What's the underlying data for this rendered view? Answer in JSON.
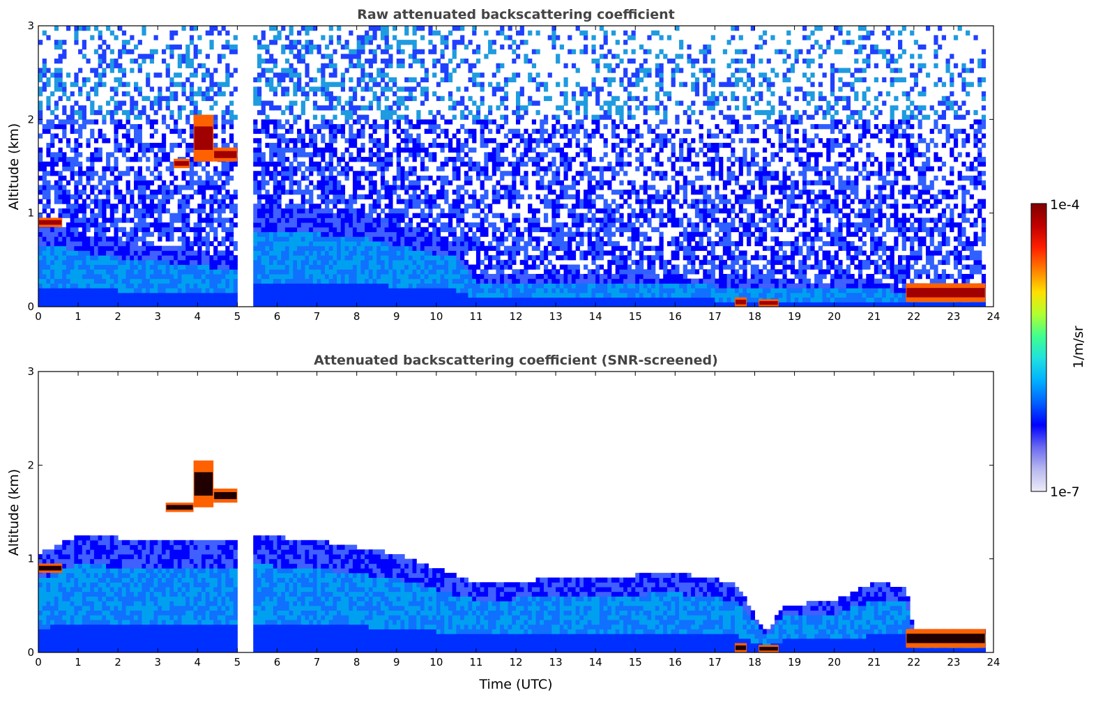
{
  "chart_data": [
    {
      "type": "heatmap",
      "title": "Raw attenuated backscattering coefficient",
      "xlabel": "",
      "ylabel": "Altitude (km)",
      "xlim": [
        0,
        24
      ],
      "ylim": [
        0,
        3
      ],
      "xticks": [
        "0",
        "1",
        "2",
        "3",
        "4",
        "5",
        "6",
        "7",
        "8",
        "9",
        "10",
        "11",
        "12",
        "13",
        "14",
        "15",
        "16",
        "17",
        "18",
        "19",
        "20",
        "21",
        "22",
        "23",
        "24"
      ],
      "yticks": [
        "0",
        "1",
        "2",
        "3"
      ],
      "data_gaps_utc": [
        [
          5.0,
          5.4
        ],
        [
          23.85,
          24.0
        ]
      ],
      "boundary_layer_top_km": [
        [
          0,
          0.9
        ],
        [
          2,
          0.7
        ],
        [
          4,
          0.6
        ],
        [
          5,
          0.5
        ],
        [
          5.4,
          1.1
        ],
        [
          8,
          1.0
        ],
        [
          10.5,
          0.7
        ],
        [
          11,
          0.35
        ],
        [
          14,
          0.35
        ],
        [
          17,
          0.3
        ],
        [
          19,
          0.25
        ],
        [
          21,
          0.3
        ],
        [
          22,
          0.15
        ],
        [
          24,
          0.15
        ]
      ],
      "cloud_layers": [
        {
          "time_utc": [
            0.0,
            0.6
          ],
          "altitude_km": [
            0.85,
            0.95
          ]
        },
        {
          "time_utc": [
            3.4,
            3.8
          ],
          "altitude_km": [
            1.48,
            1.58
          ]
        },
        {
          "time_utc": [
            3.9,
            4.4
          ],
          "altitude_km": [
            1.55,
            2.05
          ]
        },
        {
          "time_utc": [
            4.4,
            5.0
          ],
          "altitude_km": [
            1.55,
            1.7
          ]
        },
        {
          "time_utc": [
            17.5,
            17.8
          ],
          "altitude_km": [
            0.0,
            0.1
          ]
        },
        {
          "time_utc": [
            18.1,
            18.6
          ],
          "altitude_km": [
            0.0,
            0.08
          ]
        },
        {
          "time_utc": [
            21.8,
            23.8
          ],
          "altitude_km": [
            0.05,
            0.25
          ]
        }
      ]
    },
    {
      "type": "heatmap",
      "title": "Attenuated backscattering coefficient (SNR-screened)",
      "xlabel": "Time (UTC)",
      "ylabel": "Altitude (km)",
      "xlim": [
        0,
        24
      ],
      "ylim": [
        0,
        3
      ],
      "xticks": [
        "0",
        "1",
        "2",
        "3",
        "4",
        "5",
        "6",
        "7",
        "8",
        "9",
        "10",
        "11",
        "12",
        "13",
        "14",
        "15",
        "16",
        "17",
        "18",
        "19",
        "20",
        "21",
        "22",
        "23",
        "24"
      ],
      "yticks": [
        "0",
        "1",
        "2",
        "3"
      ],
      "data_gaps_utc": [
        [
          5.0,
          5.4
        ],
        [
          23.85,
          24.0
        ]
      ],
      "boundary_layer_top_km": [
        [
          0,
          1.05
        ],
        [
          1,
          1.25
        ],
        [
          3,
          1.2
        ],
        [
          5,
          1.2
        ],
        [
          5.4,
          1.25
        ],
        [
          7,
          1.2
        ],
        [
          9,
          1.05
        ],
        [
          10,
          0.9
        ],
        [
          11,
          0.75
        ],
        [
          14,
          0.8
        ],
        [
          16,
          0.85
        ],
        [
          17.5,
          0.75
        ],
        [
          18.3,
          0.2
        ],
        [
          18.7,
          0.5
        ],
        [
          20,
          0.55
        ],
        [
          21,
          0.75
        ],
        [
          21.8,
          0.7
        ],
        [
          22,
          0.25
        ],
        [
          23.8,
          0.25
        ]
      ],
      "cloud_layers": [
        {
          "time_utc": [
            0.0,
            0.6
          ],
          "altitude_km": [
            0.85,
            0.95
          ]
        },
        {
          "time_utc": [
            3.2,
            3.9
          ],
          "altitude_km": [
            1.5,
            1.6
          ]
        },
        {
          "time_utc": [
            3.9,
            4.4
          ],
          "altitude_km": [
            1.55,
            2.05
          ]
        },
        {
          "time_utc": [
            4.4,
            5.0
          ],
          "altitude_km": [
            1.6,
            1.75
          ]
        },
        {
          "time_utc": [
            17.5,
            17.8
          ],
          "altitude_km": [
            0.0,
            0.1
          ]
        },
        {
          "time_utc": [
            18.1,
            18.6
          ],
          "altitude_km": [
            0.0,
            0.08
          ]
        },
        {
          "time_utc": [
            21.8,
            23.8
          ],
          "altitude_km": [
            0.05,
            0.25
          ]
        }
      ]
    }
  ],
  "colorbar": {
    "label": "1/m/sr",
    "max_label": "1e-4",
    "min_label": "1e-7",
    "scale": "log",
    "range": [
      1e-07,
      0.0001
    ],
    "colormap": [
      "#ececf8",
      "#b8b8f0",
      "#6a6af0",
      "#0000ff",
      "#0060ff",
      "#00b0ff",
      "#20e0e0",
      "#40ff90",
      "#b0ff30",
      "#ffe000",
      "#ff8000",
      "#ff2000",
      "#c00000",
      "#800000"
    ]
  }
}
